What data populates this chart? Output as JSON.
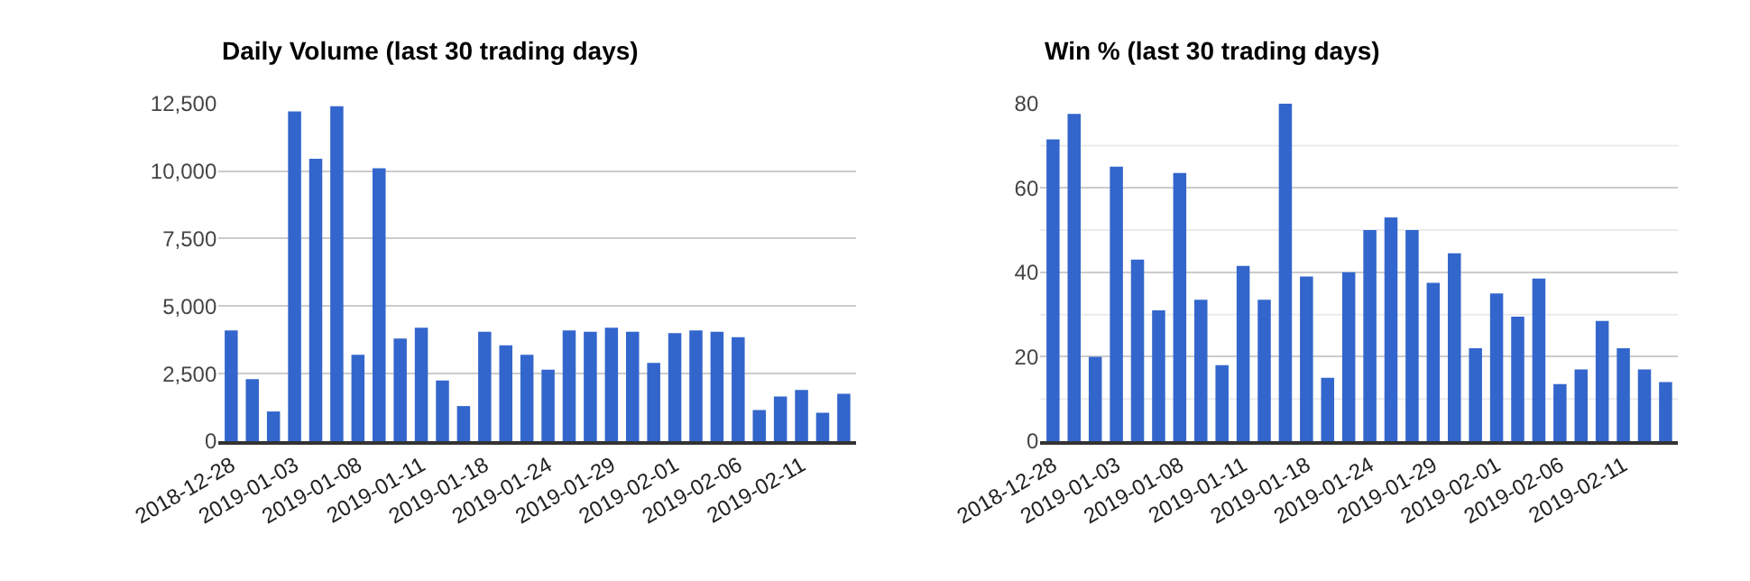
{
  "chart_data": [
    {
      "type": "bar",
      "title": "Daily Volume (last 30 trading days)",
      "categories": [
        "2018-12-28",
        null,
        null,
        "2019-01-03",
        null,
        null,
        "2019-01-08",
        null,
        null,
        "2019-01-11",
        null,
        null,
        "2019-01-18",
        null,
        null,
        "2019-01-24",
        null,
        null,
        "2019-01-29",
        null,
        null,
        "2019-02-01",
        null,
        null,
        "2019-02-06",
        null,
        null,
        "2019-02-11",
        null,
        null
      ],
      "values": [
        4100,
        2300,
        1100,
        12200,
        10450,
        12400,
        3200,
        10100,
        3800,
        4200,
        2250,
        1300,
        4050,
        3550,
        3200,
        2650,
        4100,
        4050,
        4200,
        4050,
        2900,
        4000,
        4100,
        4050,
        3850,
        1150,
        1650,
        1900,
        1050,
        1750
      ],
      "color": "#3366cc",
      "ylim": [
        0,
        12500
      ],
      "yticks": [
        {
          "value": 0,
          "label": "0"
        },
        {
          "value": 2500,
          "label": "2,500"
        },
        {
          "value": 5000,
          "label": "5,000"
        },
        {
          "value": 7500,
          "label": "7,500"
        },
        {
          "value": 10000,
          "label": "10,000"
        },
        {
          "value": 12500,
          "label": "12,500"
        }
      ],
      "grid": "y"
    },
    {
      "type": "bar",
      "title": "Win % (last 30 trading days)",
      "categories": [
        "2018-12-28",
        null,
        null,
        "2019-01-03",
        null,
        null,
        "2019-01-08",
        null,
        null,
        "2019-01-11",
        null,
        null,
        "2019-01-18",
        null,
        null,
        "2019-01-24",
        null,
        null,
        "2019-01-29",
        null,
        null,
        "2019-02-01",
        null,
        null,
        "2019-02-06",
        null,
        null,
        "2019-02-11",
        null,
        null
      ],
      "values": [
        71.5,
        77.5,
        20,
        65,
        43,
        31,
        63.5,
        33.5,
        18,
        41.5,
        33.5,
        80,
        39,
        15,
        40,
        50,
        53,
        50,
        37.5,
        44.5,
        22,
        35,
        29.5,
        38.5,
        13.5,
        17,
        28.5,
        22,
        17,
        14
      ],
      "color": "#3366cc",
      "ylim": [
        0,
        80
      ],
      "yticks": [
        0,
        {
          "value": 10,
          "label": null
        },
        20,
        {
          "value": 30,
          "label": null
        },
        40,
        {
          "value": 50,
          "label": null
        },
        60,
        {
          "value": 70,
          "label": null
        },
        80
      ],
      "grid": "y"
    }
  ]
}
